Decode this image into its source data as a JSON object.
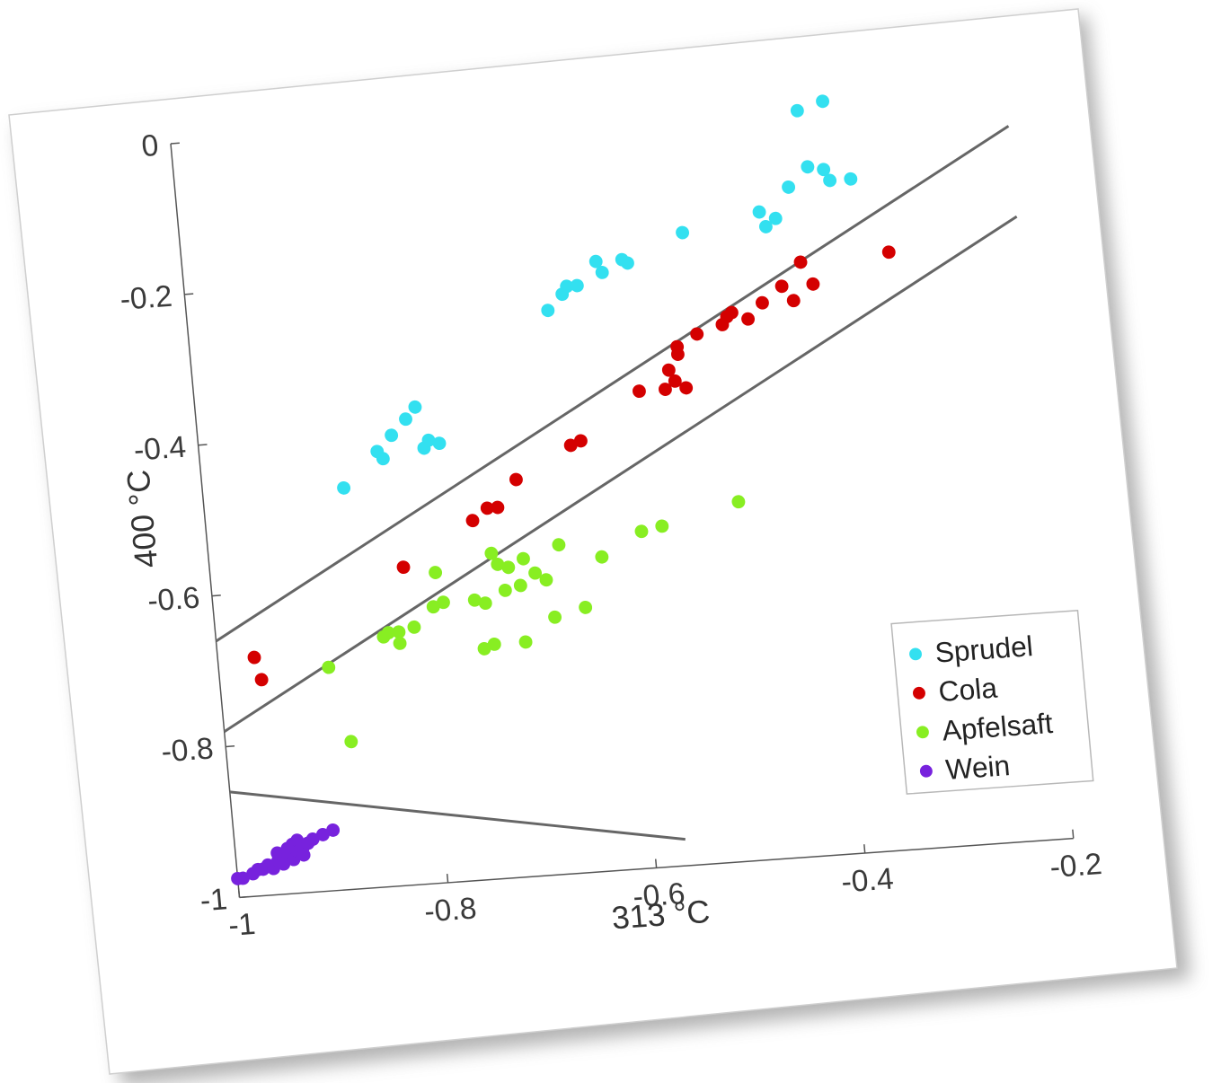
{
  "chart_data": {
    "type": "scatter",
    "xlabel": "313 °C",
    "ylabel": "400 °C",
    "xlim": [
      -1,
      -0.2
    ],
    "ylim": [
      -1,
      0
    ],
    "xticks": [
      {
        "value": -1,
        "label": "-1"
      },
      {
        "value": -0.8,
        "label": "-0.8"
      },
      {
        "value": -0.6,
        "label": "-0.6"
      },
      {
        "value": -0.4,
        "label": "-0.4"
      },
      {
        "value": -0.2,
        "label": "-0.2"
      }
    ],
    "yticks": [
      {
        "value": -1,
        "label": "-1"
      },
      {
        "value": -0.8,
        "label": "-0.8"
      },
      {
        "value": -0.6,
        "label": "-0.6"
      },
      {
        "value": -0.4,
        "label": "-0.4"
      },
      {
        "value": -0.2,
        "label": "-0.2"
      },
      {
        "value": 0,
        "label": "0"
      }
    ],
    "grid": false,
    "legend_position": "bottom-right",
    "series": [
      {
        "name": "Sprudel",
        "color": "#33e0f0",
        "points": [
          [
            -0.865,
            -0.47
          ],
          [
            -0.83,
            -0.425
          ],
          [
            -0.825,
            -0.435
          ],
          [
            -0.815,
            -0.405
          ],
          [
            -0.8,
            -0.385
          ],
          [
            -0.79,
            -0.37
          ],
          [
            -0.785,
            -0.425
          ],
          [
            -0.78,
            -0.415
          ],
          [
            -0.77,
            -0.42
          ],
          [
            -0.655,
            -0.255
          ],
          [
            -0.64,
            -0.235
          ],
          [
            -0.635,
            -0.225
          ],
          [
            -0.625,
            -0.225
          ],
          [
            -0.605,
            -0.195
          ],
          [
            -0.6,
            -0.21
          ],
          [
            -0.58,
            -0.195
          ],
          [
            -0.575,
            -0.2
          ],
          [
            -0.52,
            -0.165
          ],
          [
            -0.445,
            -0.145
          ],
          [
            -0.44,
            -0.165
          ],
          [
            -0.43,
            -0.155
          ],
          [
            -0.415,
            -0.115
          ],
          [
            -0.4,
            -0.015
          ],
          [
            -0.395,
            -0.09
          ],
          [
            -0.38,
            -0.095
          ],
          [
            -0.375,
            -0.11
          ],
          [
            -0.375,
            -0.005
          ],
          [
            -0.355,
            -0.11
          ]
        ]
      },
      {
        "name": "Cola",
        "color": "#d40000",
        "points": [
          [
            -0.965,
            -0.685
          ],
          [
            -0.96,
            -0.715
          ],
          [
            -0.815,
            -0.58
          ],
          [
            -0.745,
            -0.525
          ],
          [
            -0.73,
            -0.51
          ],
          [
            -0.72,
            -0.51
          ],
          [
            -0.7,
            -0.475
          ],
          [
            -0.645,
            -0.435
          ],
          [
            -0.635,
            -0.43
          ],
          [
            -0.575,
            -0.37
          ],
          [
            -0.55,
            -0.37
          ],
          [
            -0.545,
            -0.345
          ],
          [
            -0.54,
            -0.36
          ],
          [
            -0.535,
            -0.325
          ],
          [
            -0.535,
            -0.315
          ],
          [
            -0.53,
            -0.37
          ],
          [
            -0.515,
            -0.3
          ],
          [
            -0.49,
            -0.29
          ],
          [
            -0.485,
            -0.28
          ],
          [
            -0.48,
            -0.275
          ],
          [
            -0.465,
            -0.285
          ],
          [
            -0.45,
            -0.265
          ],
          [
            -0.43,
            -0.245
          ],
          [
            -0.42,
            -0.265
          ],
          [
            -0.41,
            -0.215
          ],
          [
            -0.4,
            -0.245
          ],
          [
            -0.325,
            -0.21
          ]
        ]
      },
      {
        "name": "Apfelsaft",
        "color": "#88ee22",
        "points": [
          [
            -0.895,
            -0.705
          ],
          [
            -0.88,
            -0.805
          ],
          [
            -0.84,
            -0.67
          ],
          [
            -0.835,
            -0.665
          ],
          [
            -0.825,
            -0.665
          ],
          [
            -0.825,
            -0.68
          ],
          [
            -0.81,
            -0.66
          ],
          [
            -0.79,
            -0.635
          ],
          [
            -0.785,
            -0.59
          ],
          [
            -0.78,
            -0.63
          ],
          [
            -0.75,
            -0.63
          ],
          [
            -0.745,
            -0.695
          ],
          [
            -0.74,
            -0.635
          ],
          [
            -0.735,
            -0.69
          ],
          [
            -0.73,
            -0.57
          ],
          [
            -0.725,
            -0.585
          ],
          [
            -0.72,
            -0.62
          ],
          [
            -0.715,
            -0.59
          ],
          [
            -0.705,
            -0.615
          ],
          [
            -0.705,
            -0.69
          ],
          [
            -0.7,
            -0.58
          ],
          [
            -0.69,
            -0.6
          ],
          [
            -0.68,
            -0.61
          ],
          [
            -0.675,
            -0.66
          ],
          [
            -0.665,
            -0.565
          ],
          [
            -0.645,
            -0.65
          ],
          [
            -0.625,
            -0.585
          ],
          [
            -0.585,
            -0.555
          ],
          [
            -0.565,
            -0.55
          ],
          [
            -0.49,
            -0.525
          ]
        ]
      },
      {
        "name": "Wein",
        "color": "#7722dd",
        "points": [
          [
            -1.0,
            -0.975
          ],
          [
            -0.995,
            -0.975
          ],
          [
            -0.985,
            -0.97
          ],
          [
            -0.98,
            -0.965
          ],
          [
            -0.975,
            -0.965
          ],
          [
            -0.97,
            -0.96
          ],
          [
            -0.965,
            -0.965
          ],
          [
            -0.96,
            -0.955
          ],
          [
            -0.96,
            -0.945
          ],
          [
            -0.955,
            -0.95
          ],
          [
            -0.955,
            -0.96
          ],
          [
            -0.95,
            -0.94
          ],
          [
            -0.95,
            -0.95
          ],
          [
            -0.945,
            -0.935
          ],
          [
            -0.945,
            -0.955
          ],
          [
            -0.94,
            -0.93
          ],
          [
            -0.94,
            -0.945
          ],
          [
            -0.935,
            -0.94
          ],
          [
            -0.935,
            -0.95
          ],
          [
            -0.93,
            -0.935
          ],
          [
            -0.925,
            -0.93
          ],
          [
            -0.915,
            -0.925
          ],
          [
            -0.905,
            -0.92
          ]
        ]
      }
    ],
    "lines": [
      {
        "color": "#666666",
        "x": [
          -1.0,
          -0.2
        ],
        "y": [
          -0.66,
          -0.055
        ]
      },
      {
        "color": "#666666",
        "x": [
          -1.0,
          -0.2
        ],
        "y": [
          -0.78,
          -0.175
        ]
      },
      {
        "color": "#666666",
        "x": [
          -1.0,
          -0.57
        ],
        "y": [
          -0.86,
          -0.965
        ]
      }
    ]
  }
}
